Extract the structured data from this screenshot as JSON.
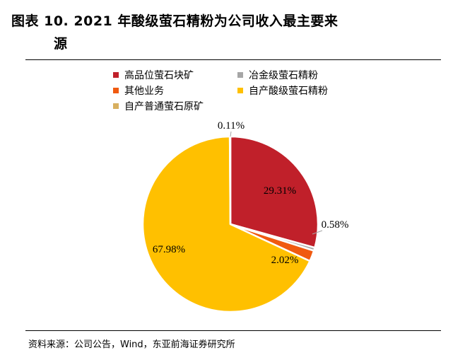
{
  "header": {
    "title_line1": "图表 10. 2021 年酸级萤石精粉为公司收入最主要来",
    "title_line2": "源"
  },
  "chart_data": {
    "type": "pie",
    "slices": [
      {
        "name": "高品位萤石块矿",
        "value": 29.31,
        "label": "29.31%",
        "color": "#C0202A"
      },
      {
        "name": "冶金级萤石精粉",
        "value": 0.58,
        "label": "0.58%",
        "color": "#A6A6A6"
      },
      {
        "name": "其他业务",
        "value": 2.02,
        "label": "2.02%",
        "color": "#F05A10"
      },
      {
        "name": "自产酸级萤石精粉",
        "value": 67.98,
        "label": "67.98%",
        "color": "#FFC000"
      },
      {
        "name": "自产普通萤石原矿",
        "value": 0.11,
        "label": "0.11%",
        "color": "#D8B060"
      }
    ],
    "legend_position": "top"
  },
  "footer": {
    "source": "资料来源：公司公告，Wind，东亚前海证券研究所"
  }
}
